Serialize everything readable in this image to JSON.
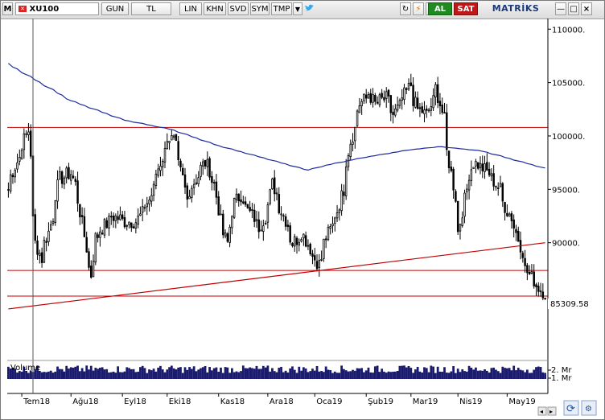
{
  "toolbar": {
    "menu_label": "M",
    "symbol": "XU100",
    "period": "GUN",
    "currency": "TL",
    "scale": "LIN",
    "mode_khn": "KHN",
    "mode_svd": "SVD",
    "mode_sym": "SYM",
    "mode_tmp": "TMP",
    "buy_label": "AL",
    "sell_label": "SAT",
    "brand": "MATRİKS",
    "refresh_glyph": "↻",
    "lightning_glyph": "⚡",
    "c_glyph": "C",
    "min_glyph": "—",
    "max_glyph": "□",
    "close_glyph": "×"
  },
  "colors": {
    "candle": "#000000",
    "ma_line": "#1c2a9c",
    "horizontal_lines": "#c00000",
    "trend_line": "#c00000",
    "volume": "#1a1a6e",
    "buy": "#1f8a1f",
    "sell": "#c01818"
  },
  "chart_data": {
    "type": "candlestick",
    "instrument": "XU100",
    "y_ticks": [
      110000,
      105000,
      100000,
      95000,
      90000
    ],
    "y_tick_labels": [
      "110000.",
      "105000.",
      "100000.",
      "95000.",
      "90000."
    ],
    "ylim": [
      79500,
      111000
    ],
    "last_price": 85309.58,
    "last_price_label": "85309.58",
    "x_tick_labels": [
      "Tem18",
      "Ağu18",
      "Eyl18",
      "Eki18",
      "Kas18",
      "Ara18",
      "Oca19",
      "Şub19",
      "Mar19",
      "Nis19",
      "May19"
    ],
    "horizontal_levels": [
      100800,
      87400,
      85000
    ],
    "trendline": {
      "from": [
        "2018-06-22",
        83800
      ],
      "to": [
        "2019-05-24",
        90000
      ]
    },
    "ma_anchors": [
      [
        "2018-06-22",
        106800
      ],
      [
        "2018-08-01",
        103300
      ],
      [
        "2018-09-03",
        101500
      ],
      [
        "2018-10-03",
        100600
      ],
      [
        "2018-11-01",
        99100
      ],
      [
        "2018-12-03",
        97800
      ],
      [
        "2018-12-27",
        96800
      ],
      [
        "2019-01-09",
        97300
      ],
      [
        "2019-02-01",
        98000
      ],
      [
        "2019-03-01",
        98700
      ],
      [
        "2019-03-20",
        99000
      ],
      [
        "2019-04-15",
        98600
      ],
      [
        "2019-05-24",
        97000
      ]
    ],
    "close_anchors": [
      [
        "2018-06-22",
        95000
      ],
      [
        "2018-06-29",
        98000
      ],
      [
        "2018-07-05",
        100500
      ],
      [
        "2018-07-10",
        90000
      ],
      [
        "2018-07-13",
        88500
      ],
      [
        "2018-07-18",
        91000
      ],
      [
        "2018-07-25",
        96000
      ],
      [
        "2018-08-01",
        96500
      ],
      [
        "2018-08-06",
        94000
      ],
      [
        "2018-08-10",
        89500
      ],
      [
        "2018-08-14",
        87000
      ],
      [
        "2018-08-16",
        90500
      ],
      [
        "2018-08-27",
        92500
      ],
      [
        "2018-09-04",
        92000
      ],
      [
        "2018-09-11",
        92000
      ],
      [
        "2018-09-19",
        94000
      ],
      [
        "2018-09-25",
        97000
      ],
      [
        "2018-10-01",
        100000
      ],
      [
        "2018-10-04",
        99500
      ],
      [
        "2018-10-10",
        96000
      ],
      [
        "2018-10-12",
        94000
      ],
      [
        "2018-10-18",
        96000
      ],
      [
        "2018-10-24",
        97500
      ],
      [
        "2018-10-30",
        95500
      ],
      [
        "2018-11-02",
        92000
      ],
      [
        "2018-11-07",
        90000
      ],
      [
        "2018-11-09",
        93000
      ],
      [
        "2018-11-15",
        94500
      ],
      [
        "2018-11-20",
        93000
      ],
      [
        "2018-11-27",
        91500
      ],
      [
        "2018-12-03",
        93500
      ],
      [
        "2018-12-05",
        95500
      ],
      [
        "2018-12-11",
        93000
      ],
      [
        "2018-12-18",
        90000
      ],
      [
        "2018-12-24",
        91000
      ],
      [
        "2018-12-28",
        89500
      ],
      [
        "2019-01-03",
        88000
      ],
      [
        "2019-01-08",
        90500
      ],
      [
        "2019-01-15",
        93000
      ],
      [
        "2019-01-18",
        95000
      ],
      [
        "2019-01-23",
        99500
      ],
      [
        "2019-01-29",
        103000
      ],
      [
        "2019-02-04",
        104000
      ],
      [
        "2019-02-07",
        103000
      ],
      [
        "2019-02-14",
        103500
      ],
      [
        "2019-02-19",
        102000
      ],
      [
        "2019-02-25",
        103500
      ],
      [
        "2019-03-01",
        104800
      ],
      [
        "2019-03-06",
        102500
      ],
      [
        "2019-03-12",
        102000
      ],
      [
        "2019-03-18",
        104500
      ],
      [
        "2019-03-22",
        101500
      ],
      [
        "2019-03-27",
        96500
      ],
      [
        "2019-04-01",
        91000
      ],
      [
        "2019-04-05",
        95000
      ],
      [
        "2019-04-10",
        97500
      ],
      [
        "2019-04-16",
        97000
      ],
      [
        "2019-04-22",
        96000
      ],
      [
        "2019-04-26",
        95000
      ],
      [
        "2019-05-01",
        93000
      ],
      [
        "2019-05-06",
        91500
      ],
      [
        "2019-05-13",
        87500
      ],
      [
        "2019-05-17",
        86500
      ],
      [
        "2019-05-24",
        85309.58
      ]
    ],
    "volume_ticks": [
      "2. Mr",
      "1. Mr"
    ],
    "volume_label": "Volume",
    "grid": false
  }
}
